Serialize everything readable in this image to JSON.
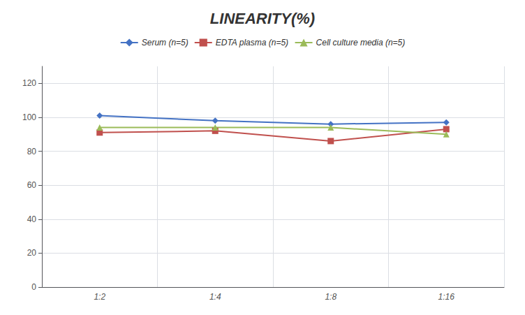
{
  "chart_data": {
    "type": "line",
    "title": "LINEARITY(%)",
    "categories": [
      "1:2",
      "1:4",
      "1:8",
      "1:16"
    ],
    "series": [
      {
        "name": "Serum (n=5)",
        "color": "#4472C4",
        "marker": "diamond",
        "values": [
          101,
          98,
          96,
          97
        ]
      },
      {
        "name": "EDTA plasma (n=5)",
        "color": "#C0504D",
        "marker": "square",
        "values": [
          91,
          92,
          86,
          93
        ]
      },
      {
        "name": "Cell culture media (n=5)",
        "color": "#9BBB59",
        "marker": "triangle",
        "values": [
          94,
          94,
          94,
          90
        ]
      }
    ],
    "ylim": [
      0,
      130
    ],
    "yticks": [
      0,
      20,
      40,
      60,
      80,
      100,
      120
    ],
    "grid": true,
    "legend": "top"
  }
}
